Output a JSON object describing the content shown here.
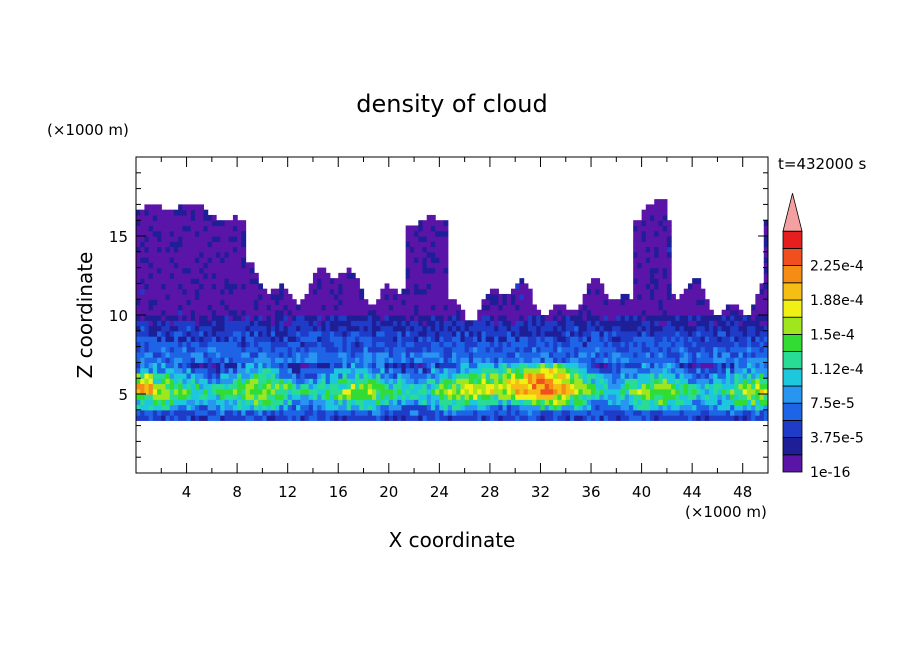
{
  "chart_data": {
    "type": "heatmap",
    "title": "density of cloud",
    "xlabel": "X coordinate",
    "ylabel": "Z coordinate",
    "x_unit": "(×1000 m)",
    "y_unit": "(×1000 m)",
    "time_label": "t=432000 s",
    "xlim": [
      0,
      50
    ],
    "ylim": [
      0,
      20
    ],
    "x_ticks": [
      4,
      8,
      12,
      16,
      20,
      24,
      28,
      32,
      36,
      40,
      44,
      48
    ],
    "y_ticks": [
      5,
      10,
      15
    ],
    "colorbar": {
      "levels": [
        1e-16,
        1.875e-05,
        3.75e-05,
        5.625e-05,
        7.5e-05,
        9.375e-05,
        0.0001125,
        0.00013125,
        0.00015,
        0.00016875,
        0.0001875,
        0.00020625,
        0.000225,
        0.00024375
      ],
      "labels": [
        "1e-16",
        "3.75e-5",
        "7.5e-5",
        "1.12e-4",
        "1.5e-4",
        "1.88e-4",
        "2.25e-4"
      ],
      "colors": [
        "#5a14a8",
        "#1e1e96",
        "#1f3cc8",
        "#1e64e6",
        "#2896f0",
        "#1ec8dc",
        "#28dc96",
        "#32dc32",
        "#a0e61e",
        "#f0f014",
        "#f5be14",
        "#f58c14",
        "#f0501e",
        "#e61e1e"
      ],
      "over_color": "#f4a0a0",
      "extend": "max"
    },
    "field_summary": {
      "cloud_base_z": 3.5,
      "cloud_top_z": 17,
      "high_density_layer_z": [
        4,
        7
      ],
      "max_density_near": {
        "x": 31,
        "z": 6
      },
      "clear_gaps_upper": [
        {
          "x": [
            8,
            22
          ],
          "z": [
            12,
            17
          ]
        },
        {
          "x": [
            24,
            40
          ],
          "z": [
            11,
            17
          ]
        },
        {
          "x": [
            42,
            50
          ],
          "z": [
            11,
            14
          ]
        }
      ]
    }
  }
}
